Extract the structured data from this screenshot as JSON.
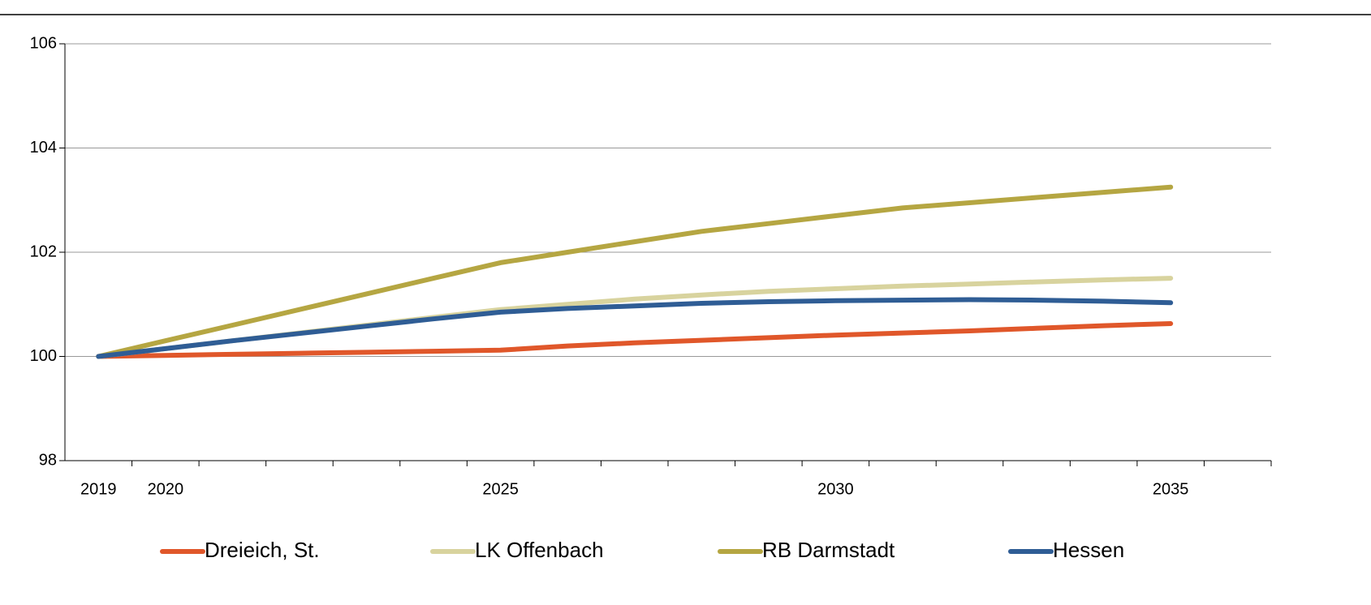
{
  "chart_data": {
    "type": "line",
    "categories": [
      "2019",
      "2020",
      null,
      null,
      null,
      null,
      "2025",
      null,
      null,
      null,
      null,
      "2030",
      null,
      null,
      null,
      null,
      "2035",
      null
    ],
    "series": [
      {
        "name": "Dreieich, St.",
        "color": "#e0572a",
        "values": [
          100,
          100.02,
          100.04,
          100.06,
          100.08,
          100.1,
          100.12,
          100.2,
          100.26,
          100.31,
          100.36,
          100.41,
          100.45,
          100.49,
          100.54,
          100.59,
          100.63,
          null
        ]
      },
      {
        "name": "LK Offenbach",
        "color": "#d8d39e",
        "values": [
          100,
          100.15,
          100.3,
          100.45,
          100.6,
          100.75,
          100.9,
          101.0,
          101.1,
          101.18,
          101.25,
          101.3,
          101.35,
          101.39,
          101.43,
          101.47,
          101.5,
          null
        ]
      },
      {
        "name": "RB Darmstadt",
        "color": "#b5a642",
        "values": [
          100,
          100.3,
          100.6,
          100.9,
          101.2,
          101.5,
          101.8,
          102.0,
          102.2,
          102.4,
          102.55,
          102.7,
          102.85,
          102.95,
          103.05,
          103.15,
          103.25,
          null
        ]
      },
      {
        "name": "Hessen",
        "color": "#2f5d95",
        "values": [
          100,
          100.15,
          100.3,
          100.44,
          100.58,
          100.72,
          100.85,
          100.92,
          100.97,
          101.02,
          101.05,
          101.07,
          101.08,
          101.09,
          101.08,
          101.06,
          101.03,
          null
        ]
      }
    ],
    "ylim": [
      98,
      106
    ],
    "yticks": [
      98,
      100,
      102,
      104,
      106
    ],
    "grid": true,
    "legend": "bottom"
  }
}
